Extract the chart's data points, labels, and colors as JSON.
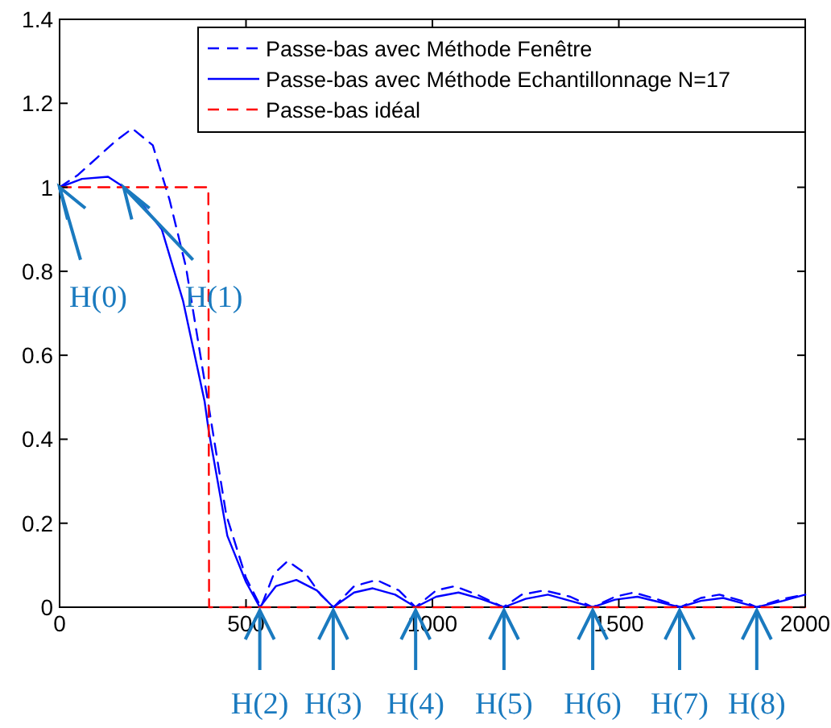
{
  "chart_data": {
    "type": "line",
    "xlim": [
      0,
      2000
    ],
    "ylim": [
      0,
      1.4
    ],
    "xticks": [
      0,
      500,
      1000,
      1500,
      2000
    ],
    "yticks": [
      0,
      0.2,
      0.4,
      0.6,
      0.8,
      1,
      1.2,
      1.4
    ],
    "grid": false,
    "legend": "top right",
    "series": [
      {
        "name": "Passe-bas avec Méthode Fenêtre",
        "color": "#0000ff",
        "line_style": "dashed",
        "x": [
          0,
          50,
          100,
          150,
          195,
          250,
          295,
          339,
          396,
          447,
          500,
          540,
          575,
          612,
          660,
          700,
          735,
          790,
          850,
          910,
          955,
          1010,
          1060,
          1120,
          1190,
          1240,
          1300,
          1370,
          1430,
          1490,
          1540,
          1600,
          1665,
          1720,
          1770,
          1830,
          1870,
          1940,
          2000
        ],
        "values": [
          1.0,
          1.03,
          1.07,
          1.11,
          1.14,
          1.1,
          0.97,
          0.81,
          0.5,
          0.22,
          0.07,
          0.0,
          0.08,
          0.11,
          0.08,
          0.03,
          0.0,
          0.05,
          0.065,
          0.04,
          0.0,
          0.04,
          0.05,
          0.03,
          0.0,
          0.03,
          0.04,
          0.025,
          0.0,
          0.025,
          0.035,
          0.02,
          0.0,
          0.022,
          0.03,
          0.015,
          0.0,
          0.02,
          0.03
        ]
      },
      {
        "name": "Passe-bas avec Méthode Echantillonnage N=17",
        "color": "#0000ff",
        "line_style": "solid",
        "x": [
          0,
          60,
          130,
          173,
          230,
          274,
          331,
          389,
          400,
          450,
          500,
          537,
          580,
          635,
          690,
          734,
          790,
          840,
          900,
          955,
          1010,
          1070,
          1130,
          1192,
          1250,
          1310,
          1370,
          1430,
          1490,
          1550,
          1610,
          1663,
          1720,
          1780,
          1830,
          1870,
          1940,
          2000
        ],
        "values": [
          1.0,
          1.02,
          1.025,
          1.0,
          0.95,
          0.9,
          0.73,
          0.49,
          0.42,
          0.17,
          0.06,
          0.0,
          0.05,
          0.065,
          0.04,
          0.0,
          0.035,
          0.045,
          0.03,
          0.0,
          0.025,
          0.035,
          0.02,
          0.0,
          0.02,
          0.03,
          0.015,
          0.0,
          0.018,
          0.025,
          0.012,
          0.0,
          0.015,
          0.022,
          0.01,
          0.0,
          0.015,
          0.03
        ]
      },
      {
        "name": "Passe-bas idéal",
        "color": "#ff0000",
        "line_style": "dashed",
        "x": [
          0,
          399,
          401,
          2000
        ],
        "values": [
          1,
          1,
          0,
          0
        ]
      }
    ],
    "annotations": [
      {
        "text": "H(0)",
        "x": 0,
        "y": 1
      },
      {
        "text": "H(1)",
        "x": 172,
        "y": 1
      },
      {
        "text": "H(2)",
        "x": 537,
        "y": 0
      },
      {
        "text": "H(3)",
        "x": 734,
        "y": 0
      },
      {
        "text": "H(4)",
        "x": 955,
        "y": 0
      },
      {
        "text": "H(5)",
        "x": 1192,
        "y": 0
      },
      {
        "text": "H(6)",
        "x": 1430,
        "y": 0
      },
      {
        "text": "H(7)",
        "x": 1663,
        "y": 0
      },
      {
        "text": "H(8)",
        "x": 1870,
        "y": 0
      }
    ]
  }
}
